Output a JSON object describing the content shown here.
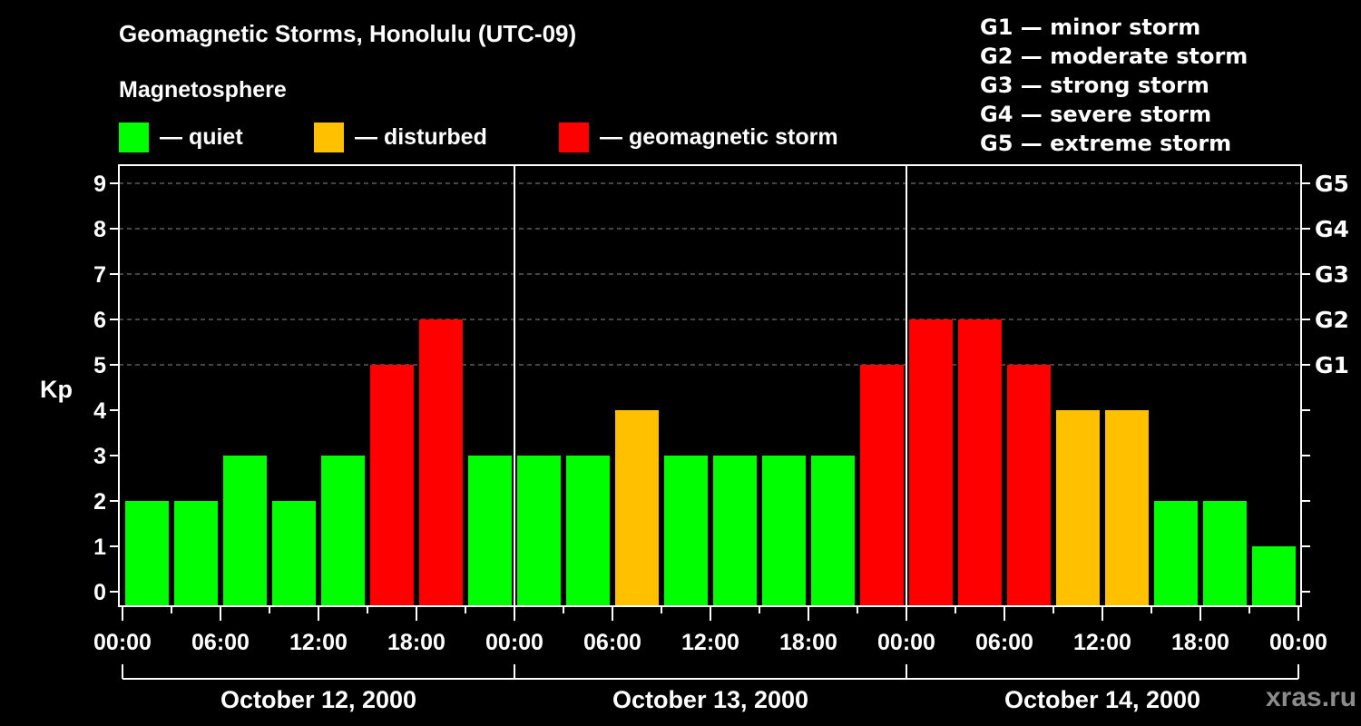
{
  "header": {
    "title": "Geomagnetic Storms, Honolulu (UTC-09)",
    "subtitle": "Magnetosphere"
  },
  "legend": [
    {
      "label": "— quiet",
      "color": "#00ff00"
    },
    {
      "label": "— disturbed",
      "color": "#ffc000"
    },
    {
      "label": "— geomagnetic storm",
      "color": "#ff0000"
    }
  ],
  "storm_scale": [
    "G1 — minor storm",
    "G2 — moderate storm",
    "G3 — strong storm",
    "G4 — severe storm",
    "G5 — extreme storm"
  ],
  "watermark": "xras.ru",
  "chart_data": {
    "type": "bar",
    "title": "Geomagnetic Storms, Honolulu (UTC-09)",
    "ylabel": "Kp",
    "xlabel": "",
    "ylim": [
      0,
      9
    ],
    "yticks": [
      0,
      1,
      2,
      3,
      4,
      5,
      6,
      7,
      8,
      9
    ],
    "right_axis_labels": {
      "5": "G1",
      "6": "G2",
      "7": "G3",
      "8": "G4",
      "9": "G5"
    },
    "grid": "dashed horizontal at Kp 5-9",
    "x_tick_labels": [
      "00:00",
      "06:00",
      "12:00",
      "18:00",
      "00:00",
      "06:00",
      "12:00",
      "18:00",
      "00:00",
      "06:00",
      "12:00",
      "18:00",
      "00:00"
    ],
    "days": [
      "October 12, 2000",
      "October 13, 2000",
      "October 14, 2000"
    ],
    "interval_hours": 3,
    "categories": [
      "Oct 12 00:00",
      "Oct 12 03:00",
      "Oct 12 06:00",
      "Oct 12 09:00",
      "Oct 12 12:00",
      "Oct 12 15:00",
      "Oct 12 18:00",
      "Oct 12 21:00",
      "Oct 13 00:00",
      "Oct 13 03:00",
      "Oct 13 06:00",
      "Oct 13 09:00",
      "Oct 13 12:00",
      "Oct 13 15:00",
      "Oct 13 18:00",
      "Oct 13 21:00",
      "Oct 14 00:00",
      "Oct 14 03:00",
      "Oct 14 06:00",
      "Oct 14 09:00",
      "Oct 14 12:00",
      "Oct 14 15:00",
      "Oct 14 18:00",
      "Oct 14 21:00"
    ],
    "values": [
      2,
      2,
      3,
      2,
      3,
      5,
      6,
      3,
      3,
      3,
      4,
      3,
      3,
      3,
      3,
      5,
      6,
      6,
      5,
      4,
      4,
      2,
      2,
      1
    ],
    "status": [
      "quiet",
      "quiet",
      "quiet",
      "quiet",
      "quiet",
      "storm",
      "storm",
      "quiet",
      "quiet",
      "quiet",
      "disturbed",
      "quiet",
      "quiet",
      "quiet",
      "quiet",
      "storm",
      "storm",
      "storm",
      "storm",
      "disturbed",
      "disturbed",
      "quiet",
      "quiet",
      "quiet"
    ],
    "colors": {
      "quiet": "#00ff00",
      "disturbed": "#ffc000",
      "storm": "#ff0000"
    }
  }
}
